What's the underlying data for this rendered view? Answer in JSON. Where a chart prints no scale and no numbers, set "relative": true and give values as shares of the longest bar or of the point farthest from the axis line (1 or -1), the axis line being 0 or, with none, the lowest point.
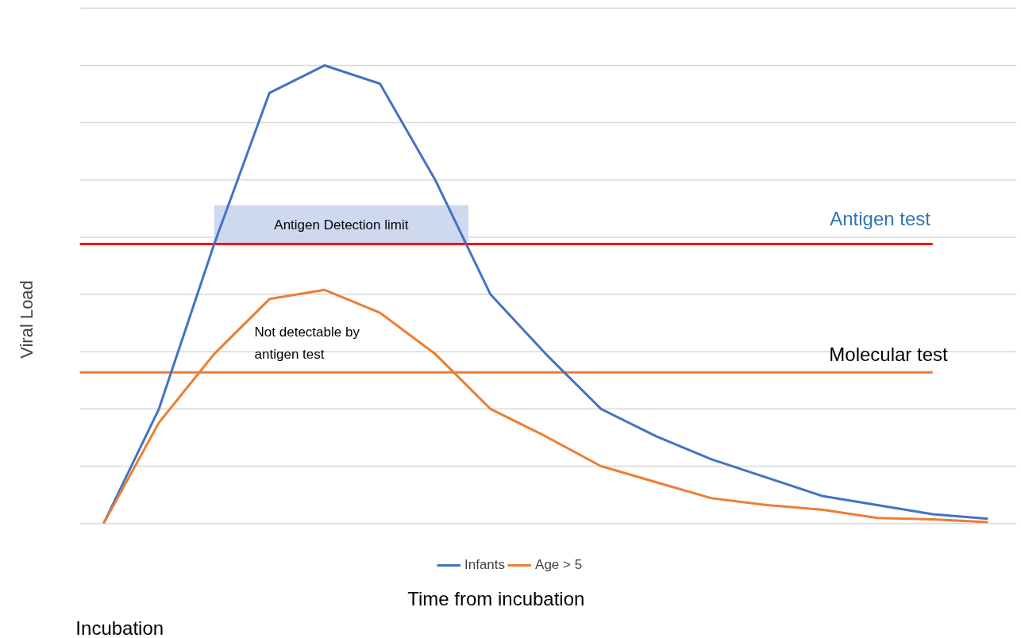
{
  "chart_data": {
    "type": "line",
    "relative": true,
    "xlabel": "Time from incubation",
    "ylabel": "Viral Load",
    "categories": [
      null,
      null,
      null,
      null,
      null,
      null,
      null,
      null,
      null,
      null,
      null,
      null,
      null,
      null,
      null,
      null,
      null
    ],
    "series": [
      {
        "name": "Infants",
        "color": "#4472c4",
        "values": [
          0,
          0.25,
          0.61,
          0.94,
          1,
          0.96,
          0.75,
          0.5,
          0.37,
          0.25,
          0.19,
          0.14,
          0.1,
          0.06,
          0.04,
          0.02,
          0.01
        ]
      },
      {
        "name": "Age > 5",
        "color": "#ed7d31",
        "values": [
          0,
          0.22,
          0.37,
          0.49,
          0.51,
          0.46,
          0.37,
          0.25,
          0.19,
          0.125,
          0.09,
          0.055,
          0.04,
          0.03,
          0.012,
          0.009,
          0.003
        ]
      }
    ],
    "ref_lines": [
      {
        "axis": "y",
        "value": 0.61,
        "label": "Antigen test",
        "color": "#ff0000"
      },
      {
        "axis": "y",
        "value": 0.33,
        "label": "Molecular test",
        "color": "#ed7d31"
      }
    ],
    "bands": [
      {
        "axis": "y",
        "from": 0.61,
        "to": 0.695,
        "label": "Antigen Detection limit",
        "color": "#c9d5ee"
      }
    ],
    "annotations": [
      "Not detectable by\nantigen test",
      "Incubation"
    ],
    "grid": "y",
    "legend": "bottom",
    "marker": "none",
    "line_style": "solid"
  }
}
